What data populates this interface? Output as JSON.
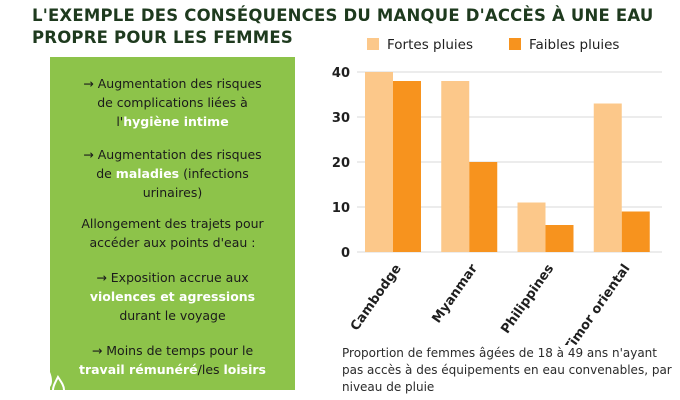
{
  "title": {
    "line1": "L'EXEMPLE DES CONSÉQUENCES DU MANQUE D'ACCÈS À UNE EAU",
    "line2": "PROPRE POUR LES FEMMES"
  },
  "panel": {
    "background": "#8dc34a",
    "items": [
      {
        "line1": "→ Augmentation des risques",
        "line2": "de complications liées à",
        "pre": "l'",
        "hl": "hygiène intime",
        "post": ""
      },
      {
        "line1": "→ Augmentation des risques",
        "pre": "de ",
        "hl": "maladies",
        "post": " (infections",
        "line3": "urinaires)"
      },
      {
        "line1": "Allongement des trajets pour",
        "line2": "accéder aux points d'eau :"
      },
      {
        "line1": "→ Exposition accrue aux",
        "hl": "violences et agressions",
        "line3": "durant le voyage"
      },
      {
        "line1": "→ Moins de temps  pour le",
        "hl1": "travail rémunéré",
        "sep": "/les ",
        "hl2": "loisirs"
      }
    ]
  },
  "caption": "Proportion de femmes âgées de 18 à 49 ans n'ayant pas accès à des équipements en eau convenables, par niveau de pluie",
  "chart_data": {
    "type": "bar",
    "categories": [
      "Cambodge",
      "Myanmar",
      "Philippines",
      "Timor oriental"
    ],
    "series": [
      {
        "name": "Fortes pluies",
        "values": [
          40,
          38,
          11,
          33
        ],
        "color": "#fcc88a"
      },
      {
        "name": "Faibles pluies",
        "values": [
          38,
          20,
          6,
          9
        ],
        "color": "#f7931e"
      }
    ],
    "yticks": [
      0,
      10,
      20,
      30,
      40
    ],
    "ylim": [
      0,
      40
    ],
    "grid": true,
    "legend": "top"
  }
}
